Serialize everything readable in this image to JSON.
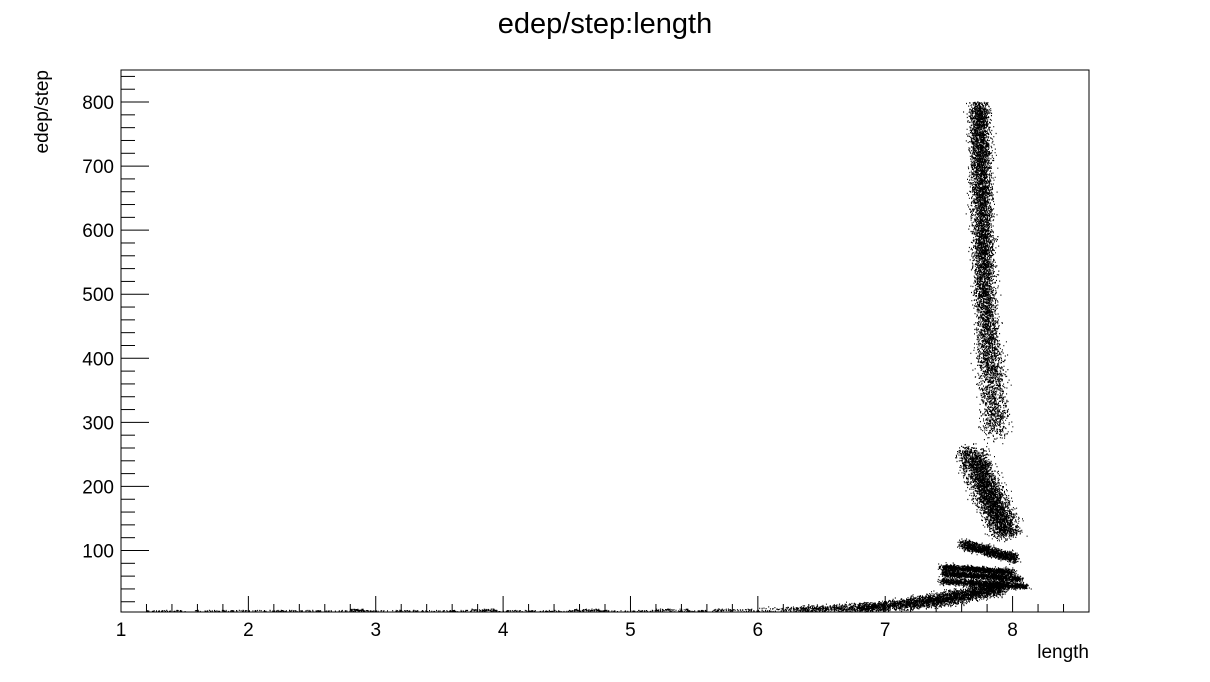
{
  "chart_data": {
    "type": "scatter",
    "title": "edep/step:length",
    "xlabel": "length",
    "ylabel": "edep/step",
    "xlim": [
      1,
      8.6
    ],
    "ylim": [
      4,
      850
    ],
    "x_ticks": [
      "1",
      "2",
      "3",
      "4",
      "5",
      "6",
      "7",
      "8"
    ],
    "y_ticks": [
      "100",
      "200",
      "300",
      "400",
      "500",
      "600",
      "700",
      "800"
    ],
    "grid": false,
    "legend": "none",
    "marker_color": "#000000",
    "clusters": [
      {
        "x": [
          1.2,
          6.2
        ],
        "y": [
          4,
          6
        ],
        "description": "sparse baseline points"
      },
      {
        "x": [
          6.0,
          7.9
        ],
        "y": [
          8,
          35
        ],
        "description": "rising low band"
      },
      {
        "x": [
          7.5,
          8.0
        ],
        "y": [
          35,
          85
        ],
        "description": "stacked arcs"
      },
      {
        "x": [
          7.6,
          8.0
        ],
        "y": [
          90,
          115
        ]
      },
      {
        "x": [
          7.55,
          8.05
        ],
        "y": [
          120,
          260
        ]
      },
      {
        "x": [
          7.5,
          8.1
        ],
        "y": [
          280,
          800
        ]
      }
    ]
  }
}
